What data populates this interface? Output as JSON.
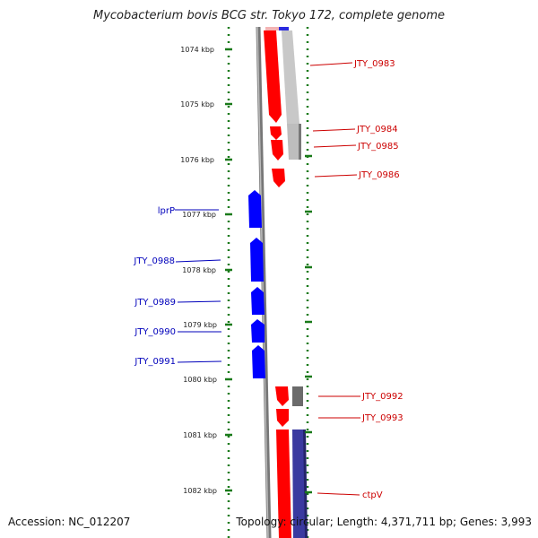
{
  "title": "Mycobacterium bovis BCG str. Tokyo 172, complete genome",
  "accession": "Accession: NC_012207",
  "summary": "Topology: circular; Length: 4,371,711 bp; Genes: 3,993",
  "colors": {
    "forward": "#ff0000",
    "reverse": "#0000ff",
    "backbone": "#808080",
    "ticks": "#1a7a1a",
    "forward_label": "#cc0000",
    "reverse_label": "#0000bb"
  },
  "ticks": [
    "1074 kbp",
    "1075 kbp",
    "1076 kbp",
    "1077 kbp",
    "1078 kbp",
    "1079 kbp",
    "1080 kbp",
    "1081 kbp",
    "1082 kbp"
  ],
  "forward_genes": [
    "JTY_0983",
    "JTY_0984",
    "JTY_0985",
    "JTY_0986",
    "JTY_0992",
    "JTY_0993",
    "ctpV"
  ],
  "reverse_genes": [
    "lprP",
    "JTY_0988",
    "JTY_0989",
    "JTY_0990",
    "JTY_0991"
  ]
}
